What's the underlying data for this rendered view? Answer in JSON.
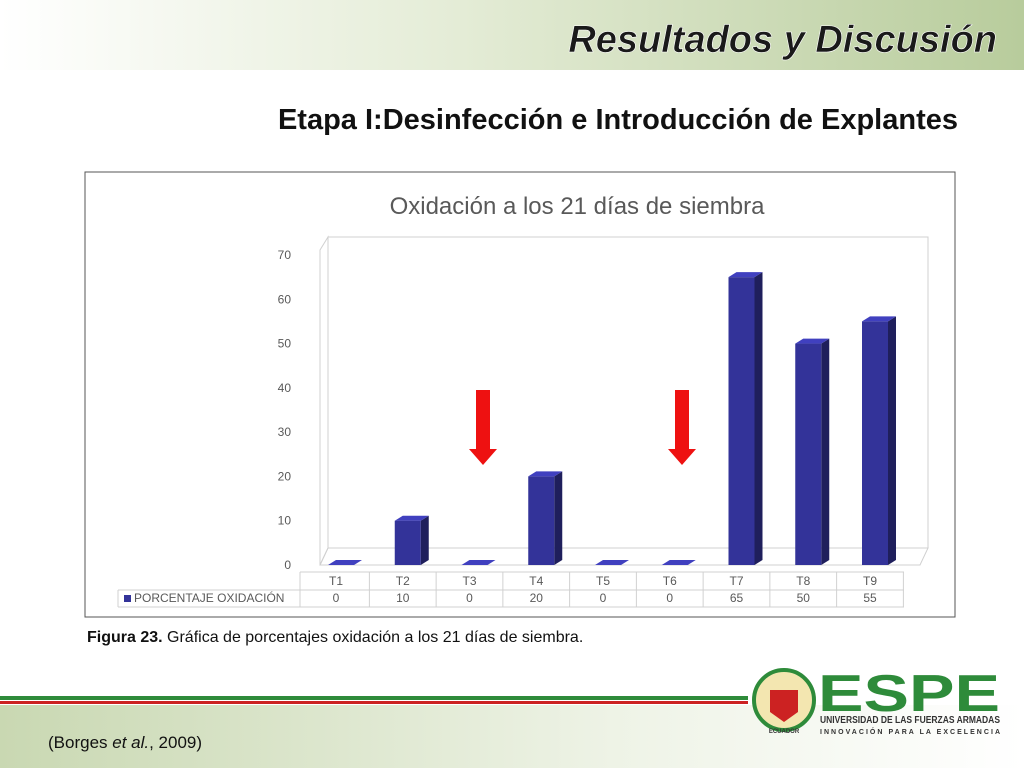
{
  "header": {
    "title": "Resultados y Discusión",
    "subtitle": "Etapa I:Desinfección e Introducción de Explantes"
  },
  "chart_data": {
    "type": "bar",
    "title": "Oxidación a los 21 días de siembra",
    "categories": [
      "T1",
      "T2",
      "T3",
      "T4",
      "T5",
      "T6",
      "T7",
      "T8",
      "T9"
    ],
    "series": [
      {
        "name": "PORCENTAJE OXIDACIÓN",
        "color": "#333399",
        "values": [
          0,
          10,
          0,
          20,
          0,
          0,
          65,
          50,
          55
        ]
      }
    ],
    "ylim": [
      0,
      70
    ],
    "yticks": [
      0,
      10,
      20,
      30,
      40,
      50,
      60,
      70
    ],
    "grid": false
  },
  "caption": {
    "label": "Figura 23.",
    "text": " Gráfica de porcentajes oxidación a los 21 días de siembra."
  },
  "citation": {
    "before": "(Borges ",
    "italic": "et al.",
    "after": ", 2009)"
  },
  "logo": {
    "name": "ESPE",
    "line1": "UNIVERSIDAD DE LAS FUERZAS ARMADAS",
    "line2": "INNOVACIÓN PARA LA EXCELENCIA",
    "badge": "ECUADOR"
  }
}
